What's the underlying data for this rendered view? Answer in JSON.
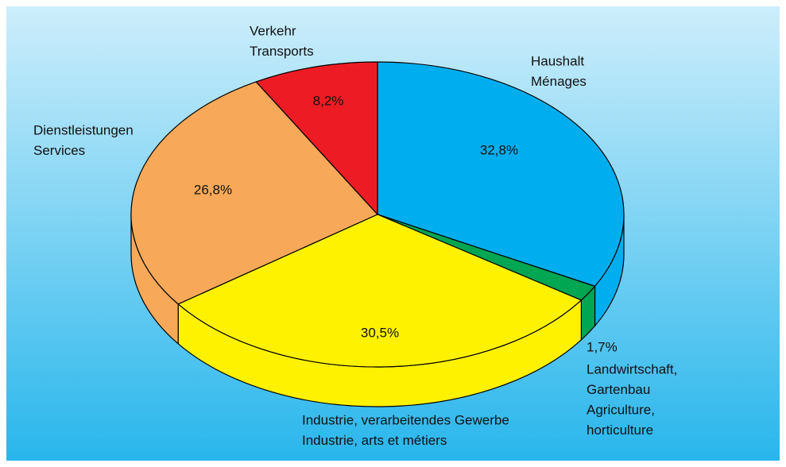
{
  "chart_data": {
    "type": "pie3d",
    "categories": [
      [
        "Haushalt",
        "Ménages"
      ],
      [
        "Landwirtschaft,",
        "Gartenbau",
        "Agriculture,",
        "horticulture"
      ],
      [
        "Industrie, verarbeitendes Gewerbe",
        "Industrie, arts et métiers"
      ],
      [
        "Dienstleistungen",
        "Services"
      ],
      [
        "Verkehr",
        "Transports"
      ]
    ],
    "values": [
      32.8,
      1.7,
      30.5,
      26.8,
      8.2
    ],
    "value_labels": [
      "32,8%",
      "1,7%",
      "30,5%",
      "26,8%",
      "8,2%"
    ],
    "colors": [
      "#00aeef",
      "#00a651",
      "#fff200",
      "#f7a959",
      "#ed1c24"
    ]
  }
}
